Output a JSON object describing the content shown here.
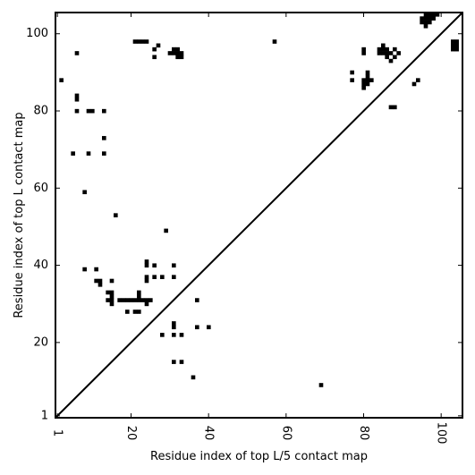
{
  "chart_data": {
    "type": "heatmap",
    "title": "",
    "xlabel": "Residue index of top L/5 contact map",
    "ylabel": "Residue index of top L contact map",
    "xlim": [
      1,
      105
    ],
    "ylim": [
      1,
      105
    ],
    "xticks": [
      1,
      20,
      40,
      60,
      80,
      100
    ],
    "yticks": [
      1,
      20,
      40,
      60,
      80,
      100
    ],
    "xtick_labels": [
      "1",
      "20",
      "40",
      "60",
      "80",
      "100"
    ],
    "ytick_labels": [
      "1",
      "20",
      "40",
      "60",
      "80",
      "100"
    ],
    "diagonal": true,
    "cell_color": "#000000",
    "upper_triangle_contacts": [
      [
        69,
        9
      ]
    ],
    "lower_triangle_contacts": [
      [
        2,
        88
      ],
      [
        5,
        69
      ],
      [
        6,
        95
      ],
      [
        6,
        84
      ],
      [
        6,
        83
      ],
      [
        6,
        80
      ],
      [
        8,
        59
      ],
      [
        8,
        39
      ],
      [
        9,
        80
      ],
      [
        9,
        69
      ],
      [
        10,
        80
      ],
      [
        11,
        39
      ],
      [
        11,
        36
      ],
      [
        12,
        36
      ],
      [
        12,
        35
      ],
      [
        13,
        80
      ],
      [
        13,
        73
      ],
      [
        13,
        69
      ],
      [
        14,
        33
      ],
      [
        14,
        31
      ],
      [
        15,
        36
      ],
      [
        15,
        33
      ],
      [
        15,
        32
      ],
      [
        15,
        31
      ],
      [
        15,
        30
      ],
      [
        16,
        53
      ],
      [
        17,
        31
      ],
      [
        18,
        31
      ],
      [
        19,
        31
      ],
      [
        19,
        28
      ],
      [
        20,
        31
      ],
      [
        21,
        98
      ],
      [
        21,
        31
      ],
      [
        21,
        28
      ],
      [
        22,
        98
      ],
      [
        22,
        33
      ],
      [
        22,
        32
      ],
      [
        22,
        31
      ],
      [
        22,
        28
      ],
      [
        23,
        98
      ],
      [
        23,
        31
      ],
      [
        24,
        98
      ],
      [
        24,
        41
      ],
      [
        24,
        40
      ],
      [
        24,
        37
      ],
      [
        24,
        36
      ],
      [
        24,
        31
      ],
      [
        24,
        30
      ],
      [
        25,
        31
      ],
      [
        26,
        96
      ],
      [
        26,
        94
      ],
      [
        26,
        40
      ],
      [
        26,
        37
      ],
      [
        27,
        97
      ],
      [
        28,
        37
      ],
      [
        28,
        22
      ],
      [
        29,
        49
      ],
      [
        30,
        95
      ],
      [
        31,
        96
      ],
      [
        31,
        95
      ],
      [
        31,
        40
      ],
      [
        31,
        37
      ],
      [
        31,
        25
      ],
      [
        31,
        24
      ],
      [
        31,
        22
      ],
      [
        31,
        15
      ],
      [
        32,
        96
      ],
      [
        32,
        95
      ],
      [
        32,
        94
      ],
      [
        33,
        95
      ],
      [
        33,
        94
      ],
      [
        33,
        22
      ],
      [
        33,
        15
      ],
      [
        36,
        11
      ],
      [
        37,
        31
      ],
      [
        37,
        24
      ],
      [
        40,
        24
      ],
      [
        57,
        98
      ],
      [
        77,
        90
      ],
      [
        77,
        88
      ],
      [
        80,
        96
      ],
      [
        80,
        95
      ],
      [
        80,
        88
      ],
      [
        80,
        87
      ],
      [
        80,
        86
      ],
      [
        81,
        90
      ],
      [
        81,
        89
      ],
      [
        81,
        88
      ],
      [
        81,
        87
      ],
      [
        82,
        88
      ],
      [
        84,
        96
      ],
      [
        84,
        95
      ],
      [
        85,
        97
      ],
      [
        85,
        96
      ],
      [
        85,
        95
      ],
      [
        86,
        96
      ],
      [
        86,
        95
      ],
      [
        86,
        94
      ],
      [
        87,
        95
      ],
      [
        87,
        93
      ],
      [
        87,
        81
      ],
      [
        88,
        96
      ],
      [
        88,
        94
      ],
      [
        88,
        81
      ],
      [
        89,
        95
      ],
      [
        93,
        87
      ],
      [
        94,
        88
      ],
      [
        95,
        104
      ],
      [
        95,
        103
      ],
      [
        96,
        105
      ],
      [
        96,
        104
      ],
      [
        96,
        103
      ],
      [
        96,
        102
      ],
      [
        97,
        105
      ],
      [
        97,
        104
      ],
      [
        97,
        103
      ],
      [
        98,
        105
      ],
      [
        98,
        104
      ],
      [
        99,
        105
      ],
      [
        103,
        98
      ],
      [
        103,
        97
      ],
      [
        103,
        96
      ],
      [
        104,
        98
      ],
      [
        104,
        97
      ],
      [
        104,
        96
      ]
    ]
  }
}
